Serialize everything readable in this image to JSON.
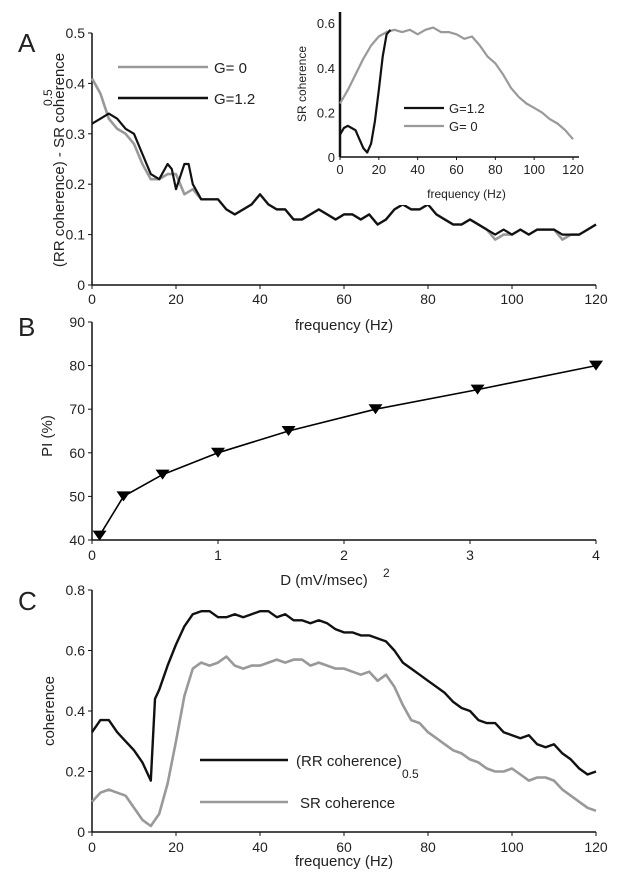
{
  "panels": {
    "a_letter": "A",
    "b_letter": "B",
    "c_letter": "C"
  },
  "chart_data": [
    {
      "id": "A",
      "type": "line",
      "xlabel": "frequency (Hz)",
      "ylabel": "(RR coherence) - SR coherence",
      "ylabel_sup": "0.5",
      "xlim": [
        0,
        120
      ],
      "ylim": [
        0,
        0.5
      ],
      "xticks": [
        "0",
        "20",
        "40",
        "60",
        "80",
        "100",
        "120"
      ],
      "yticks": [
        "0",
        "0.1",
        "0.2",
        "0.3",
        "0.4",
        "0.5"
      ],
      "series": [
        {
          "name": "G= 0",
          "color": "#999999",
          "x": [
            0,
            2,
            4,
            6,
            8,
            10,
            12,
            14,
            16,
            18,
            20,
            22,
            24,
            26,
            28,
            30,
            32,
            34,
            36,
            38,
            40,
            42,
            44,
            46,
            48,
            50,
            52,
            54,
            56,
            58,
            60,
            62,
            64,
            66,
            68,
            70,
            72,
            74,
            76,
            78,
            80,
            82,
            84,
            86,
            88,
            90,
            92,
            94,
            96,
            98,
            100,
            102,
            104,
            106,
            108,
            110,
            112,
            114,
            116,
            118,
            120
          ],
          "y": [
            0.41,
            0.38,
            0.33,
            0.31,
            0.3,
            0.28,
            0.24,
            0.21,
            0.21,
            0.22,
            0.22,
            0.18,
            0.19,
            0.17,
            0.17,
            0.17,
            0.15,
            0.14,
            0.15,
            0.16,
            0.18,
            0.16,
            0.15,
            0.15,
            0.13,
            0.13,
            0.14,
            0.15,
            0.14,
            0.13,
            0.14,
            0.14,
            0.13,
            0.14,
            0.12,
            0.13,
            0.15,
            0.16,
            0.15,
            0.15,
            0.16,
            0.14,
            0.13,
            0.12,
            0.12,
            0.13,
            0.12,
            0.11,
            0.09,
            0.1,
            0.1,
            0.11,
            0.1,
            0.11,
            0.11,
            0.11,
            0.09,
            0.1,
            0.1,
            0.11,
            0.12
          ]
        },
        {
          "name": "G=1.2",
          "color": "#111111",
          "x": [
            0,
            2,
            4,
            6,
            8,
            10,
            12,
            14,
            16,
            18,
            19,
            20,
            22,
            23,
            24,
            26,
            28,
            30,
            32,
            34,
            36,
            38,
            40,
            42,
            44,
            46,
            48,
            50,
            52,
            54,
            56,
            58,
            60,
            62,
            64,
            66,
            68,
            70,
            72,
            74,
            76,
            78,
            80,
            82,
            84,
            86,
            88,
            90,
            92,
            94,
            96,
            98,
            100,
            102,
            104,
            106,
            108,
            110,
            112,
            114,
            116,
            118,
            120
          ],
          "y": [
            0.32,
            0.33,
            0.34,
            0.33,
            0.31,
            0.3,
            0.26,
            0.22,
            0.21,
            0.24,
            0.23,
            0.19,
            0.24,
            0.24,
            0.2,
            0.17,
            0.17,
            0.17,
            0.15,
            0.14,
            0.15,
            0.16,
            0.18,
            0.16,
            0.15,
            0.15,
            0.13,
            0.13,
            0.14,
            0.15,
            0.14,
            0.13,
            0.14,
            0.14,
            0.13,
            0.14,
            0.12,
            0.13,
            0.15,
            0.16,
            0.15,
            0.15,
            0.16,
            0.14,
            0.13,
            0.12,
            0.12,
            0.13,
            0.12,
            0.11,
            0.1,
            0.11,
            0.1,
            0.11,
            0.1,
            0.11,
            0.11,
            0.11,
            0.1,
            0.1,
            0.1,
            0.11,
            0.12
          ]
        }
      ],
      "legend": [
        "G= 0",
        "G=1.2"
      ]
    },
    {
      "id": "A-inset",
      "type": "line",
      "xlabel": "frequency (Hz)",
      "ylabel": "SR coherence",
      "xlim": [
        0,
        120
      ],
      "ylim": [
        0,
        0.65
      ],
      "xticks": [
        "0",
        "20",
        "40",
        "60",
        "80",
        "100",
        "120"
      ],
      "yticks": [
        "0",
        "0.2",
        "0.4",
        "0.6"
      ],
      "series": [
        {
          "name": "G=1.2",
          "color": "#111111",
          "x": [
            0,
            2,
            4,
            6,
            8,
            10,
            12,
            14,
            16,
            18,
            20,
            22,
            24,
            26
          ],
          "y": [
            0.1,
            0.13,
            0.14,
            0.13,
            0.12,
            0.08,
            0.04,
            0.02,
            0.06,
            0.16,
            0.3,
            0.45,
            0.55,
            0.57
          ]
        },
        {
          "name": "G= 0",
          "color": "#999999",
          "x": [
            0,
            4,
            8,
            12,
            16,
            20,
            24,
            28,
            32,
            36,
            40,
            44,
            48,
            52,
            56,
            60,
            64,
            68,
            72,
            76,
            80,
            84,
            88,
            92,
            96,
            100,
            104,
            108,
            112,
            116,
            120
          ],
          "y": [
            0.24,
            0.3,
            0.37,
            0.44,
            0.5,
            0.54,
            0.56,
            0.57,
            0.56,
            0.57,
            0.55,
            0.57,
            0.58,
            0.56,
            0.56,
            0.55,
            0.53,
            0.54,
            0.5,
            0.45,
            0.42,
            0.37,
            0.31,
            0.27,
            0.24,
            0.22,
            0.2,
            0.17,
            0.15,
            0.12,
            0.08
          ]
        }
      ],
      "legend": [
        "G=1.2",
        "G= 0"
      ]
    },
    {
      "id": "B",
      "type": "line",
      "xlabel": "D  (mV/msec)",
      "xlabel_sup": "2",
      "ylabel": "PI (%)",
      "xlim": [
        0,
        4
      ],
      "ylim": [
        40,
        90
      ],
      "xticks": [
        "0",
        "1",
        "2",
        "3",
        "4"
      ],
      "yticks": [
        "40",
        "50",
        "60",
        "70",
        "80",
        "90"
      ],
      "series": [
        {
          "name": "",
          "color": "#000000",
          "marker": "triangle-down",
          "x": [
            0.06,
            0.25,
            0.56,
            1.0,
            1.56,
            2.25,
            3.06,
            4.0
          ],
          "y": [
            41,
            50,
            55,
            60,
            65,
            70,
            74.5,
            80
          ]
        }
      ]
    },
    {
      "id": "C",
      "type": "line",
      "xlabel": "frequency (Hz)",
      "ylabel": "coherence",
      "xlim": [
        0,
        120
      ],
      "ylim": [
        0,
        0.8
      ],
      "xticks": [
        "0",
        "20",
        "40",
        "60",
        "80",
        "100",
        "120"
      ],
      "yticks": [
        "0",
        "0.2",
        "0.4",
        "0.6",
        "0.8"
      ],
      "series": [
        {
          "name": "(RR coherence)",
          "name_sup": "0.5",
          "color": "#111111",
          "x": [
            0,
            2,
            4,
            6,
            8,
            10,
            12,
            14,
            15,
            16,
            18,
            20,
            22,
            24,
            26,
            28,
            30,
            32,
            34,
            36,
            38,
            40,
            42,
            44,
            46,
            48,
            50,
            52,
            54,
            56,
            58,
            60,
            62,
            64,
            66,
            68,
            70,
            72,
            74,
            76,
            78,
            80,
            82,
            84,
            86,
            88,
            90,
            92,
            94,
            96,
            98,
            100,
            102,
            104,
            106,
            108,
            110,
            112,
            114,
            116,
            118,
            120
          ],
          "y": [
            0.33,
            0.37,
            0.37,
            0.33,
            0.3,
            0.27,
            0.23,
            0.17,
            0.44,
            0.47,
            0.55,
            0.62,
            0.68,
            0.72,
            0.73,
            0.73,
            0.71,
            0.71,
            0.72,
            0.71,
            0.72,
            0.73,
            0.73,
            0.71,
            0.72,
            0.7,
            0.7,
            0.69,
            0.7,
            0.69,
            0.67,
            0.66,
            0.66,
            0.65,
            0.65,
            0.64,
            0.63,
            0.6,
            0.56,
            0.54,
            0.52,
            0.5,
            0.48,
            0.46,
            0.43,
            0.41,
            0.4,
            0.37,
            0.36,
            0.36,
            0.33,
            0.32,
            0.31,
            0.32,
            0.29,
            0.28,
            0.29,
            0.26,
            0.24,
            0.21,
            0.19,
            0.2
          ]
        },
        {
          "name": "SR coherence",
          "color": "#999999",
          "x": [
            0,
            2,
            4,
            6,
            8,
            10,
            12,
            14,
            16,
            18,
            20,
            22,
            24,
            26,
            28,
            30,
            32,
            34,
            36,
            38,
            40,
            42,
            44,
            46,
            48,
            50,
            52,
            54,
            56,
            58,
            60,
            62,
            64,
            66,
            68,
            70,
            72,
            74,
            76,
            78,
            80,
            82,
            84,
            86,
            88,
            90,
            92,
            94,
            96,
            98,
            100,
            102,
            104,
            106,
            108,
            110,
            112,
            114,
            116,
            118,
            120
          ],
          "y": [
            0.1,
            0.13,
            0.14,
            0.13,
            0.12,
            0.08,
            0.04,
            0.02,
            0.06,
            0.16,
            0.3,
            0.45,
            0.54,
            0.56,
            0.55,
            0.56,
            0.58,
            0.55,
            0.54,
            0.55,
            0.55,
            0.56,
            0.57,
            0.56,
            0.57,
            0.57,
            0.55,
            0.56,
            0.55,
            0.54,
            0.54,
            0.53,
            0.52,
            0.53,
            0.5,
            0.52,
            0.48,
            0.42,
            0.37,
            0.36,
            0.33,
            0.31,
            0.29,
            0.27,
            0.26,
            0.24,
            0.23,
            0.21,
            0.2,
            0.2,
            0.21,
            0.19,
            0.17,
            0.18,
            0.18,
            0.17,
            0.14,
            0.12,
            0.1,
            0.08,
            0.07
          ]
        }
      ],
      "legend": [
        "(RR coherence)",
        "SR coherence"
      ]
    }
  ]
}
